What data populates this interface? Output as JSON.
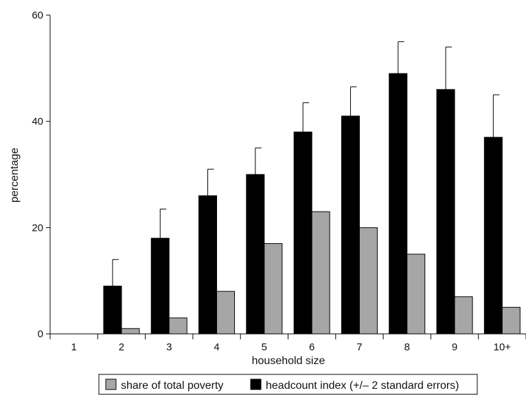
{
  "chart_data": {
    "type": "bar",
    "xlabel": "household size",
    "ylabel": "percentage",
    "ylim": [
      0,
      60
    ],
    "yticks": [
      0,
      20,
      40,
      60
    ],
    "grid": false,
    "legend_position": "bottom",
    "categories": [
      "1",
      "2",
      "3",
      "4",
      "5",
      "6",
      "7",
      "8",
      "9",
      "10+"
    ],
    "series": [
      {
        "name": "headcount index (+/– 2 standard errors)",
        "color": "#000000",
        "values": [
          0,
          9,
          18,
          26,
          30,
          38,
          41,
          49,
          46,
          37
        ],
        "error_upper": [
          0,
          14,
          23.5,
          31,
          35,
          43.5,
          46.5,
          55,
          54,
          45
        ]
      },
      {
        "name": "share of total poverty",
        "color": "#a6a6a6",
        "values": [
          0,
          1,
          3,
          8,
          17,
          23,
          20,
          15,
          7,
          5
        ]
      }
    ]
  }
}
